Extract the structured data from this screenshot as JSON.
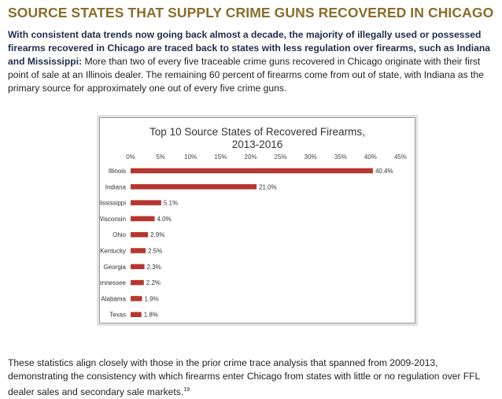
{
  "page": {
    "heading": "SOURCE STATES THAT SUPPLY CRIME GUNS RECOVERED IN CHICAGO",
    "intro_bold": "With consistent data trends now going back almost a decade, the majority of illegally used or possessed firearms recovered in Chicago are traced back to states with less regulation over firearms, such as Indiana and Mississippi:",
    "intro_rest": " More than two of every five traceable crime guns recovered in Chicago originate with their first point of sale at an Illinois dealer. The remaining 60 percent of firearms come from out of state, with Indiana as the primary source for approximately one out of every five crime guns.",
    "footer_text": "These statistics align closely with those in the prior crime trace analysis that spanned from 2009-2013, demonstrating the consistency with which firearms enter Chicago from states with little or no regulation over FFL dealer sales and secondary sale markets.",
    "footer_note": "19"
  },
  "chart_data": {
    "type": "bar",
    "orientation": "horizontal",
    "title_line1": "Top 10 Source States of Recovered Firearms,",
    "title_line2": "2013-2016",
    "categories": [
      "Illinois",
      "Indiana",
      "Mississippi",
      "Wisconsin",
      "Ohio",
      "Kentucky",
      "Georgia",
      "Tennessee",
      "Alabama",
      "Texas"
    ],
    "values": [
      40.4,
      21.0,
      5.1,
      4.0,
      2.9,
      2.5,
      2.3,
      2.2,
      1.9,
      1.8
    ],
    "value_labels": [
      "40.4%",
      "21.0%",
      "5.1%",
      "4.0%",
      "2.9%",
      "2.5%",
      "2.3%",
      "2.2%",
      "1.9%",
      "1.8%"
    ],
    "xlim": [
      0,
      45
    ],
    "ticks": [
      0,
      5,
      10,
      15,
      20,
      25,
      30,
      35,
      40,
      45
    ],
    "tick_labels": [
      "0%",
      "5%",
      "10%",
      "15%",
      "20%",
      "25%",
      "30%",
      "35%",
      "40%",
      "45%"
    ],
    "axis_position": "top",
    "grid": false,
    "bar_color": "#b5372f"
  }
}
